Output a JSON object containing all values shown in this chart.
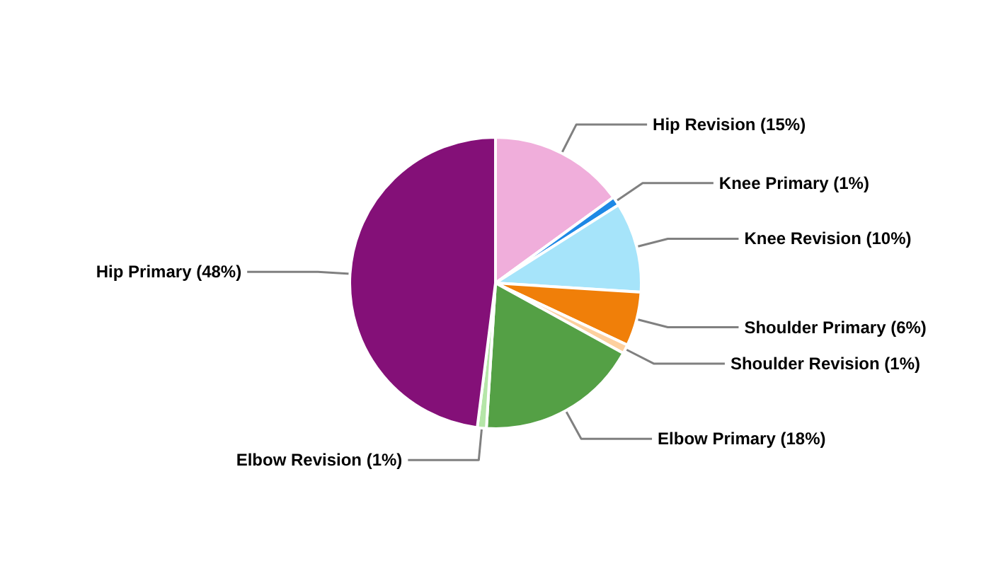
{
  "chart_data": {
    "type": "pie",
    "categories": [
      "Hip Revision (15%)",
      "Knee Primary (1%)",
      "Knee Revision (10%)",
      "Shoulder Primary (6%)",
      "Shoulder Revision (1%)",
      "Elbow Primary (18%)",
      "Elbow Revision (1%)",
      "Hip Primary (48%)"
    ],
    "values": [
      15,
      1,
      10,
      6,
      1,
      18,
      1,
      48
    ],
    "colors": [
      "#f0aedb",
      "#1e88e5",
      "#a6e4fa",
      "#f07f09",
      "#fdd09f",
      "#54a045",
      "#b5e6a8",
      "#841078"
    ]
  }
}
